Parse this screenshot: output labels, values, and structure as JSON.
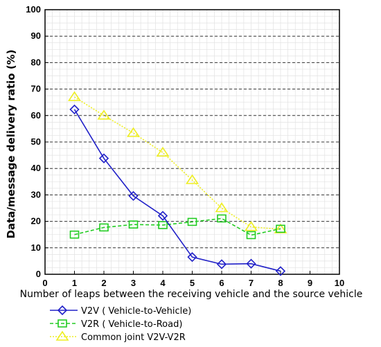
{
  "chart_data": {
    "type": "line",
    "title": "",
    "xlabel": "Number of leaps between the receiving vehicle and the source vehicle",
    "ylabel": "Data/message delivery ratio (%)",
    "xlim": [
      0,
      10
    ],
    "ylim": [
      0,
      100
    ],
    "x_ticks": [
      "0",
      "1",
      "2",
      "3",
      "4",
      "5",
      "6",
      "7",
      "8",
      "9",
      "10"
    ],
    "y_ticks": [
      "0",
      "10",
      "20",
      "30",
      "40",
      "50",
      "60",
      "70",
      "80",
      "90",
      "100"
    ],
    "grid": true,
    "legend_position": "bottom-left",
    "series": [
      {
        "name": "V2V ( Vehicle-to-Vehicle)",
        "color": "#2020c8",
        "line_style": "solid",
        "marker": "diamond",
        "x": [
          1,
          2,
          3,
          4,
          5,
          6,
          7,
          8
        ],
        "values": [
          62.3,
          43.8,
          29.6,
          22.1,
          6.5,
          3.8,
          4.0,
          1.2
        ]
      },
      {
        "name": "V2R ( Vehicle-to-Road)",
        "color": "#22cc22",
        "line_style": "dashed",
        "marker": "square",
        "x": [
          1,
          2,
          3,
          4,
          5,
          6,
          7,
          8
        ],
        "values": [
          15.0,
          17.7,
          18.8,
          18.6,
          19.8,
          21.1,
          14.8,
          17.2
        ]
      },
      {
        "name": "Common joint V2V-V2R",
        "color": "#eeee22",
        "line_style": "dotted",
        "marker": "triangle",
        "x": [
          1,
          2,
          3,
          4,
          5,
          6,
          7,
          8
        ],
        "values": [
          67.0,
          60.0,
          53.4,
          46.0,
          35.6,
          25.0,
          17.9,
          17.0
        ]
      }
    ]
  }
}
